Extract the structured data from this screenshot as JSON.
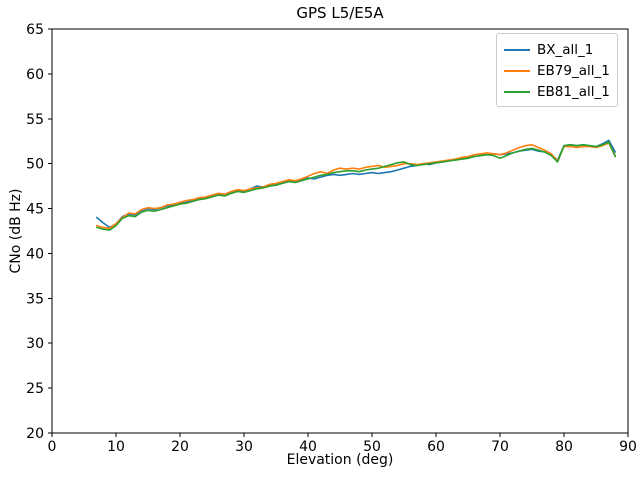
{
  "chart_data": {
    "type": "line",
    "title": "GPS L5/E5A",
    "xlabel": "Elevation (deg)",
    "ylabel": "CNo (dB Hz)",
    "xlim": [
      0,
      90
    ],
    "ylim": [
      20,
      65
    ],
    "xticks": [
      0,
      10,
      20,
      30,
      40,
      50,
      60,
      70,
      80,
      90
    ],
    "yticks": [
      20,
      25,
      30,
      35,
      40,
      45,
      50,
      55,
      60,
      65
    ],
    "grid": false,
    "legend_position": "upper right",
    "frame_color": "#000000",
    "x": [
      7,
      8,
      9,
      10,
      11,
      12,
      13,
      14,
      15,
      16,
      17,
      18,
      19,
      20,
      21,
      22,
      23,
      24,
      25,
      26,
      27,
      28,
      29,
      30,
      31,
      32,
      33,
      34,
      35,
      36,
      37,
      38,
      39,
      40,
      41,
      42,
      43,
      44,
      45,
      46,
      47,
      48,
      49,
      50,
      51,
      52,
      53,
      54,
      55,
      56,
      57,
      58,
      59,
      60,
      61,
      62,
      63,
      64,
      65,
      66,
      67,
      68,
      69,
      70,
      71,
      72,
      73,
      74,
      75,
      76,
      77,
      78,
      79,
      80,
      81,
      82,
      83,
      84,
      85,
      86,
      87,
      88
    ],
    "series": [
      {
        "name": "BX_all_1",
        "color": "#1f77b4",
        "values": [
          44.0,
          43.4,
          42.9,
          43.3,
          44.1,
          44.4,
          44.3,
          44.8,
          45.0,
          44.9,
          45.1,
          45.3,
          45.4,
          45.6,
          45.7,
          45.9,
          46.1,
          46.2,
          46.4,
          46.6,
          46.5,
          46.8,
          47.0,
          46.9,
          47.2,
          47.5,
          47.4,
          47.6,
          47.7,
          47.9,
          48.1,
          48.0,
          48.2,
          48.4,
          48.3,
          48.5,
          48.7,
          48.8,
          48.7,
          48.8,
          48.9,
          48.8,
          48.9,
          49.0,
          48.9,
          49.0,
          49.1,
          49.3,
          49.5,
          49.7,
          49.8,
          50.0,
          49.9,
          50.1,
          50.2,
          50.3,
          50.5,
          50.6,
          50.7,
          50.8,
          50.9,
          51.0,
          51.1,
          51.0,
          51.1,
          51.2,
          51.4,
          51.5,
          51.6,
          51.4,
          51.3,
          51.0,
          50.4,
          52.0,
          52.1,
          52.0,
          52.1,
          52.0,
          51.9,
          52.2,
          52.6,
          51.3
        ]
      },
      {
        "name": "EB79_all_1",
        "color": "#ff7f0e",
        "values": [
          43.1,
          42.9,
          42.8,
          43.3,
          44.0,
          44.5,
          44.4,
          44.9,
          45.1,
          45.0,
          45.1,
          45.4,
          45.5,
          45.7,
          45.9,
          46.0,
          46.2,
          46.3,
          46.5,
          46.7,
          46.6,
          46.9,
          47.1,
          47.0,
          47.2,
          47.3,
          47.4,
          47.7,
          47.8,
          48.0,
          48.2,
          48.1,
          48.3,
          48.6,
          48.9,
          49.1,
          48.9,
          49.3,
          49.5,
          49.4,
          49.5,
          49.4,
          49.6,
          49.7,
          49.8,
          49.6,
          49.7,
          49.8,
          50.0,
          50.0,
          49.9,
          50.0,
          50.1,
          50.2,
          50.3,
          50.4,
          50.5,
          50.7,
          50.8,
          51.0,
          51.1,
          51.2,
          51.1,
          51.0,
          51.2,
          51.5,
          51.8,
          52.0,
          52.1,
          51.8,
          51.5,
          51.1,
          50.3,
          51.9,
          51.9,
          51.8,
          51.9,
          51.9,
          51.8,
          52.0,
          52.3,
          50.9
        ]
      },
      {
        "name": "EB81_all_1",
        "color": "#2ca02c",
        "values": [
          42.9,
          42.7,
          42.6,
          43.1,
          43.9,
          44.2,
          44.1,
          44.6,
          44.8,
          44.7,
          44.9,
          45.1,
          45.3,
          45.5,
          45.6,
          45.8,
          46.0,
          46.1,
          46.3,
          46.5,
          46.4,
          46.7,
          46.9,
          46.8,
          47.0,
          47.2,
          47.3,
          47.5,
          47.6,
          47.8,
          48.0,
          47.9,
          48.1,
          48.3,
          48.5,
          48.7,
          48.8,
          49.0,
          49.1,
          49.2,
          49.2,
          49.1,
          49.3,
          49.4,
          49.5,
          49.7,
          49.9,
          50.1,
          50.2,
          49.9,
          49.8,
          49.9,
          50.0,
          50.1,
          50.2,
          50.3,
          50.4,
          50.5,
          50.6,
          50.8,
          50.9,
          51.0,
          50.9,
          50.6,
          50.9,
          51.2,
          51.4,
          51.6,
          51.7,
          51.5,
          51.3,
          50.9,
          50.2,
          52.0,
          52.1,
          52.0,
          52.1,
          52.0,
          51.9,
          52.1,
          52.4,
          50.8
        ]
      }
    ]
  }
}
